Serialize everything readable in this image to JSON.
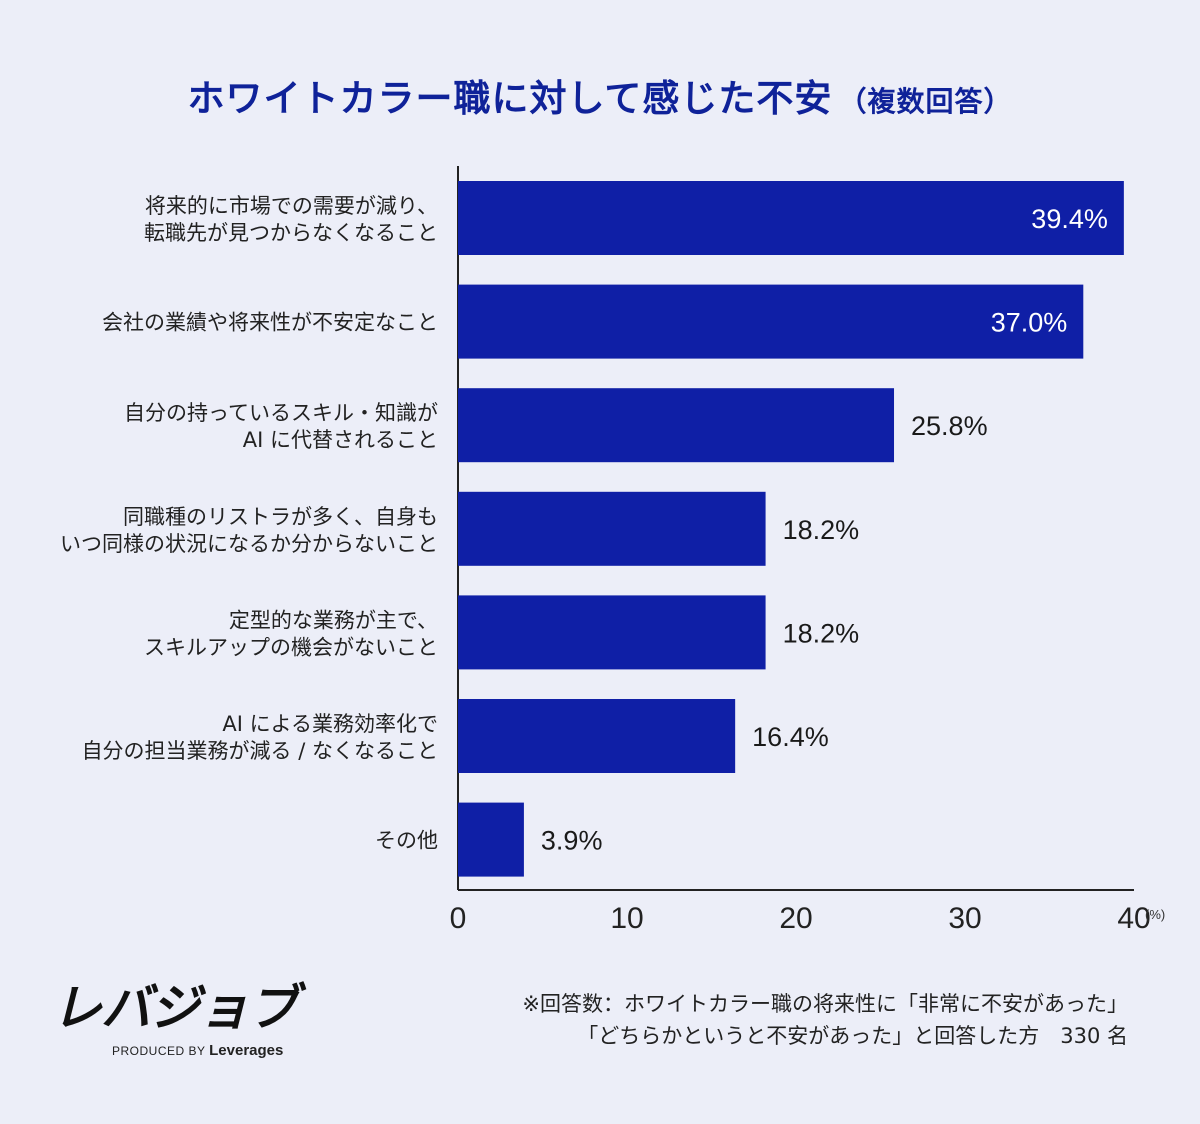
{
  "title": "ホワイトカラー職に対して感じた不安",
  "title_suffix": "（複数回答）",
  "chart_data": {
    "type": "bar",
    "orientation": "horizontal",
    "title": "ホワイトカラー職に対して感じた不安（複数回答）",
    "categories": [
      [
        "将来的に市場での需要が減り、",
        "転職先が見つからなくなること"
      ],
      [
        "会社の業績や将来性が不安定なこと"
      ],
      [
        "自分の持っているスキル・知識が",
        "AI に代替されること"
      ],
      [
        "同職種のリストラが多く、自身も",
        "いつ同様の状況になるか分からないこと"
      ],
      [
        "定型的な業務が主で、",
        "スキルアップの機会がないこと"
      ],
      [
        "AI による業務効率化で",
        "自分の担当業務が減る / なくなること"
      ],
      [
        "その他"
      ]
    ],
    "values": [
      39.4,
      37.0,
      25.8,
      18.2,
      18.2,
      16.4,
      3.9
    ],
    "value_labels": [
      "39.4%",
      "37.0%",
      "25.8%",
      "18.2%",
      "18.2%",
      "16.4%",
      "3.9%"
    ],
    "xlim": [
      0,
      40
    ],
    "xticks": [
      "0",
      "10",
      "20",
      "30",
      "40"
    ],
    "unit": "(%)",
    "bar_color": "#0f1fa6",
    "grid": false
  },
  "logo": {
    "name": "レバジョブ",
    "tagline_prefix": "PRODUCED BY",
    "tagline_brand": "Leverages"
  },
  "footnote": {
    "line1": "※回答数：ホワイトカラー職の将来性に「非常に不安があった」",
    "line2": "「どちらかというと不安があった」と回答した方　330 名"
  }
}
